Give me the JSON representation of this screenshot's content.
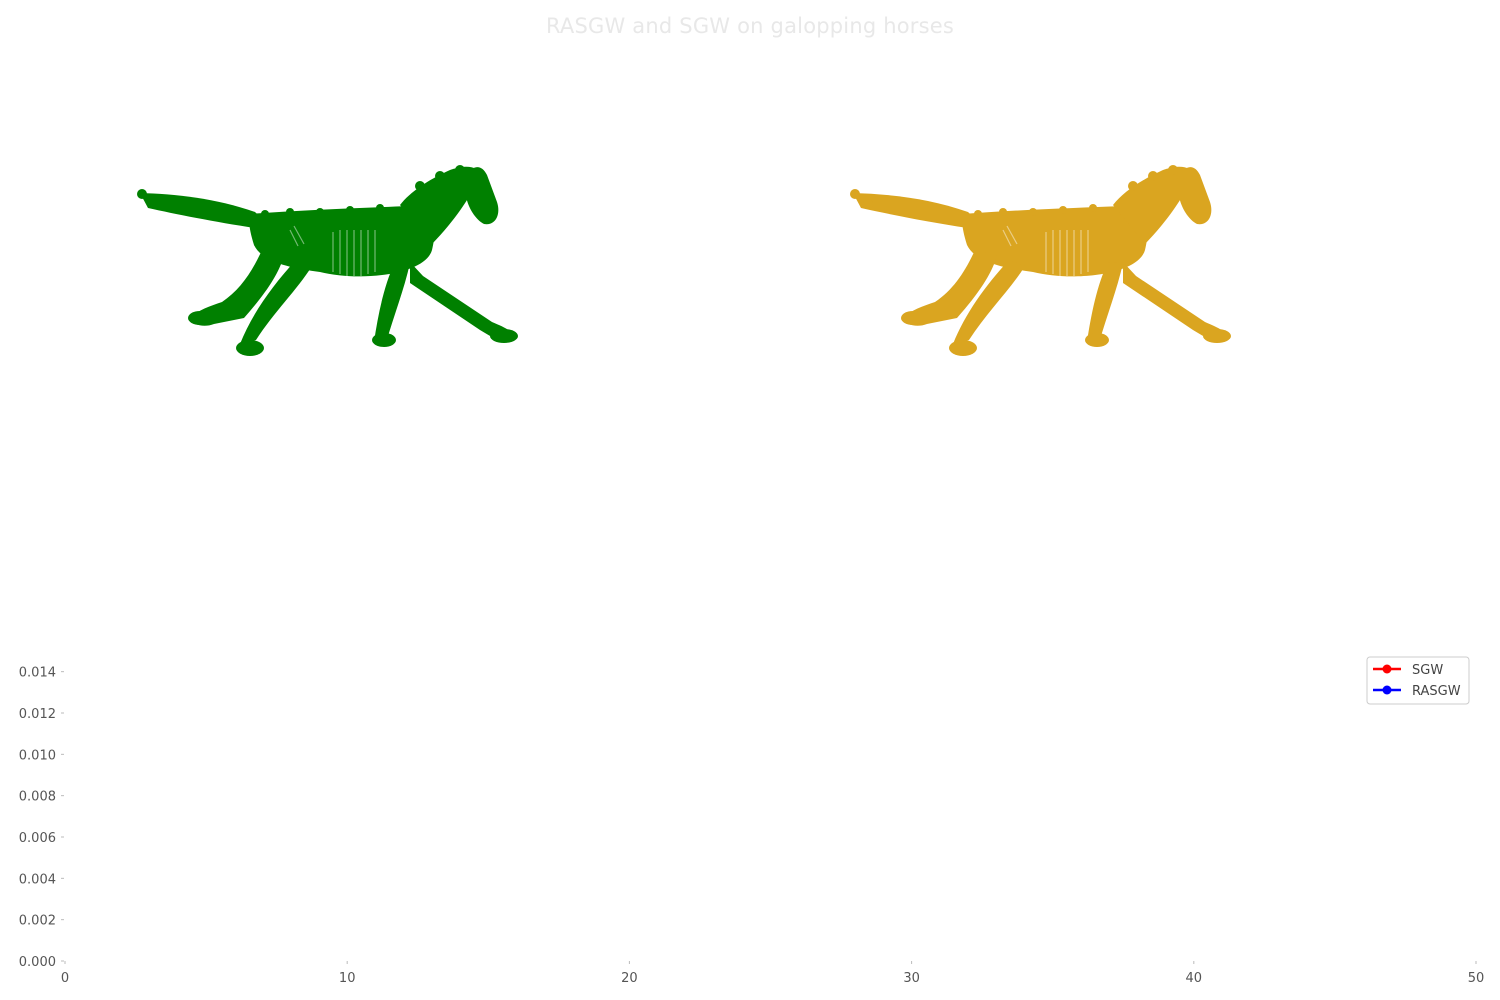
{
  "title": "RASGW and SGW on galopping horses",
  "shapes": {
    "source": {
      "color": "#008000"
    },
    "target": {
      "color": "#DAA520"
    }
  },
  "chart_data": {
    "type": "line",
    "title": "",
    "xlabel": "",
    "ylabel": "",
    "xlim": [
      0,
      50
    ],
    "ylim": [
      0,
      0.015
    ],
    "xticks": [
      0,
      10,
      20,
      30,
      40,
      50
    ],
    "yticks": [
      "0.000",
      "0.002",
      "0.004",
      "0.006",
      "0.008",
      "0.010",
      "0.012",
      "0.014"
    ],
    "grid": false,
    "legend_position": "top-right",
    "series": [
      {
        "name": "SGW",
        "color": "#ff0000",
        "x": [],
        "values": []
      },
      {
        "name": "RASGW",
        "color": "#0000ff",
        "x": [],
        "values": []
      }
    ]
  }
}
